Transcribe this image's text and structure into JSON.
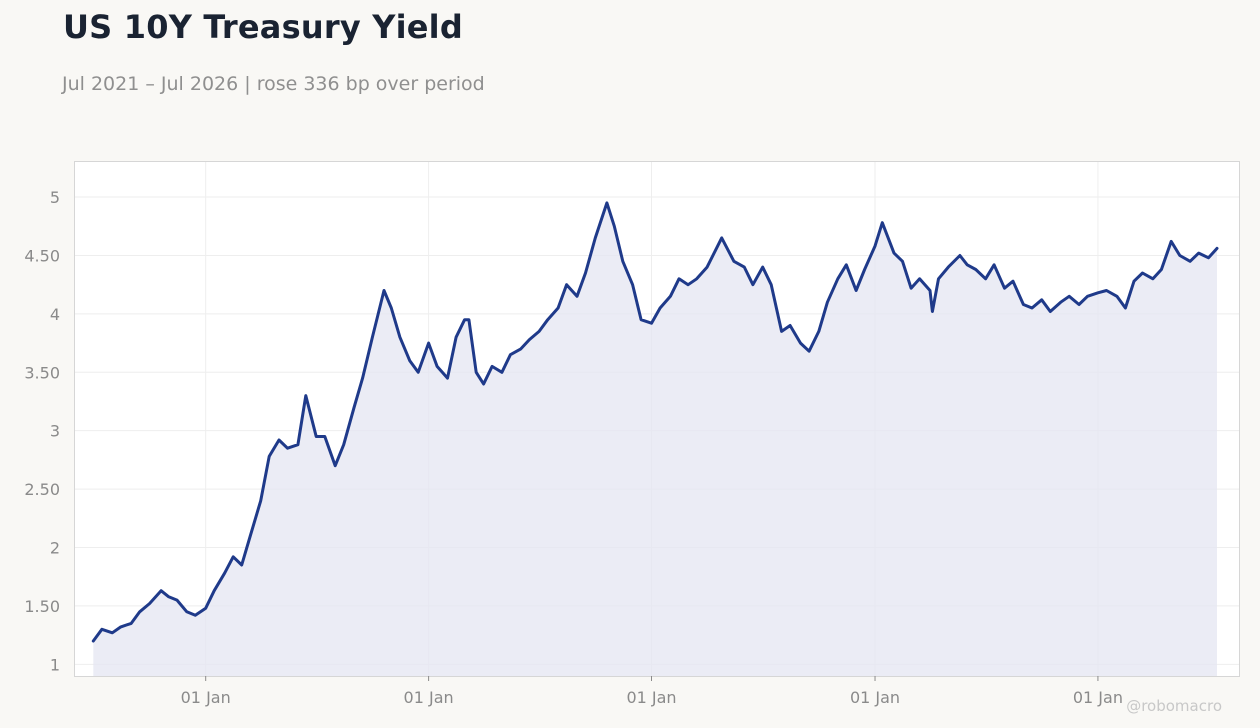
{
  "chart_data": {
    "type": "line",
    "title": "US 10Y Treasury Yield",
    "subtitle": "Jul 2021 – Jul 2026 | rose 336 bp over period",
    "xlabel": "",
    "ylabel": "",
    "ylim": [
      0.9,
      5.3
    ],
    "xlim": [
      "2021-06-01",
      "2026-08-20"
    ],
    "yticks": [
      1,
      1.5,
      2,
      2.5,
      3,
      3.5,
      4,
      4.5,
      5
    ],
    "ytick_labels": [
      "1",
      "1.50",
      "2",
      "2.50",
      "3",
      "3.50",
      "4",
      "4.50",
      "5"
    ],
    "xticks": [
      "2022-01-01",
      "2023-01-01",
      "2024-01-01",
      "2025-01-01",
      "2026-01-01"
    ],
    "xtick_labels": [
      "01 Jan",
      "01 Jan",
      "01 Jan",
      "01 Jan",
      "01 Jan"
    ],
    "grid": true,
    "area_fill": true,
    "colors": {
      "line": "#1f3a8a",
      "fill": "#e4e6f2",
      "background": "#f9f8f5",
      "plot_bg": "#ffffff"
    },
    "series": [
      {
        "x": [
          "2021-07-01",
          "2021-07-15",
          "2021-08-01",
          "2021-08-15",
          "2021-09-01",
          "2021-09-15",
          "2021-10-01",
          "2021-10-20",
          "2021-11-01",
          "2021-11-15",
          "2021-12-01",
          "2021-12-15",
          "2022-01-01",
          "2022-01-15",
          "2022-02-01",
          "2022-02-15",
          "2022-03-01",
          "2022-03-15",
          "2022-04-01",
          "2022-04-15",
          "2022-05-01",
          "2022-05-15",
          "2022-06-01",
          "2022-06-14",
          "2022-07-01",
          "2022-07-15",
          "2022-08-01",
          "2022-08-15",
          "2022-09-01",
          "2022-09-15",
          "2022-10-01",
          "2022-10-20",
          "2022-11-01",
          "2022-11-15",
          "2022-12-01",
          "2022-12-15",
          "2023-01-01",
          "2023-01-15",
          "2023-02-01",
          "2023-02-15",
          "2023-03-01",
          "2023-03-08",
          "2023-03-20",
          "2023-04-01",
          "2023-04-15",
          "2023-05-01",
          "2023-05-15",
          "2023-06-01",
          "2023-06-15",
          "2023-07-01",
          "2023-07-15",
          "2023-08-01",
          "2023-08-15",
          "2023-09-01",
          "2023-09-15",
          "2023-10-01",
          "2023-10-20",
          "2023-11-01",
          "2023-11-15",
          "2023-12-01",
          "2023-12-15",
          "2024-01-01",
          "2024-01-15",
          "2024-02-01",
          "2024-02-15",
          "2024-03-01",
          "2024-03-15",
          "2024-04-01",
          "2024-04-25",
          "2024-05-15",
          "2024-06-01",
          "2024-06-15",
          "2024-07-01",
          "2024-07-15",
          "2024-08-01",
          "2024-08-15",
          "2024-09-01",
          "2024-09-15",
          "2024-10-01",
          "2024-10-15",
          "2024-11-01",
          "2024-11-15",
          "2024-12-01",
          "2024-12-15",
          "2025-01-01",
          "2025-01-13",
          "2025-02-01",
          "2025-02-15",
          "2025-03-01",
          "2025-03-15",
          "2025-04-01",
          "2025-04-05",
          "2025-04-15",
          "2025-05-01",
          "2025-05-20",
          "2025-06-01",
          "2025-06-15",
          "2025-07-01",
          "2025-07-15",
          "2025-08-01",
          "2025-08-15",
          "2025-09-01",
          "2025-09-15",
          "2025-10-01",
          "2025-10-15",
          "2025-11-01",
          "2025-11-15",
          "2025-12-01",
          "2025-12-15",
          "2026-01-01",
          "2026-01-15",
          "2026-02-01",
          "2026-02-15",
          "2026-03-01",
          "2026-03-15",
          "2026-04-01",
          "2026-04-15",
          "2026-05-01",
          "2026-05-15",
          "2026-06-01",
          "2026-06-15",
          "2026-07-01",
          "2026-07-15"
        ],
        "y": [
          1.2,
          1.3,
          1.27,
          1.32,
          1.35,
          1.45,
          1.52,
          1.63,
          1.58,
          1.55,
          1.45,
          1.42,
          1.48,
          1.63,
          1.78,
          1.92,
          1.85,
          2.1,
          2.4,
          2.78,
          2.92,
          2.85,
          2.88,
          3.3,
          2.95,
          2.95,
          2.7,
          2.88,
          3.2,
          3.45,
          3.8,
          4.2,
          4.05,
          3.8,
          3.6,
          3.5,
          3.75,
          3.55,
          3.45,
          3.8,
          3.95,
          3.95,
          3.5,
          3.4,
          3.55,
          3.5,
          3.65,
          3.7,
          3.78,
          3.85,
          3.95,
          4.05,
          4.25,
          4.15,
          4.35,
          4.65,
          4.95,
          4.75,
          4.45,
          4.25,
          3.95,
          3.92,
          4.05,
          4.15,
          4.3,
          4.25,
          4.3,
          4.4,
          4.65,
          4.45,
          4.4,
          4.25,
          4.4,
          4.25,
          3.85,
          3.9,
          3.75,
          3.68,
          3.85,
          4.1,
          4.3,
          4.42,
          4.2,
          4.38,
          4.58,
          4.78,
          4.52,
          4.45,
          4.22,
          4.3,
          4.2,
          4.02,
          4.3,
          4.4,
          4.5,
          4.42,
          4.38,
          4.3,
          4.42,
          4.22,
          4.28,
          4.08,
          4.05,
          4.12,
          4.02,
          4.1,
          4.15,
          4.08,
          4.15,
          4.18,
          4.2,
          4.15,
          4.05,
          4.28,
          4.35,
          4.3,
          4.38,
          4.62,
          4.5,
          4.45,
          4.52,
          4.48,
          4.56
        ]
      }
    ]
  },
  "watermark": "@robomacro"
}
